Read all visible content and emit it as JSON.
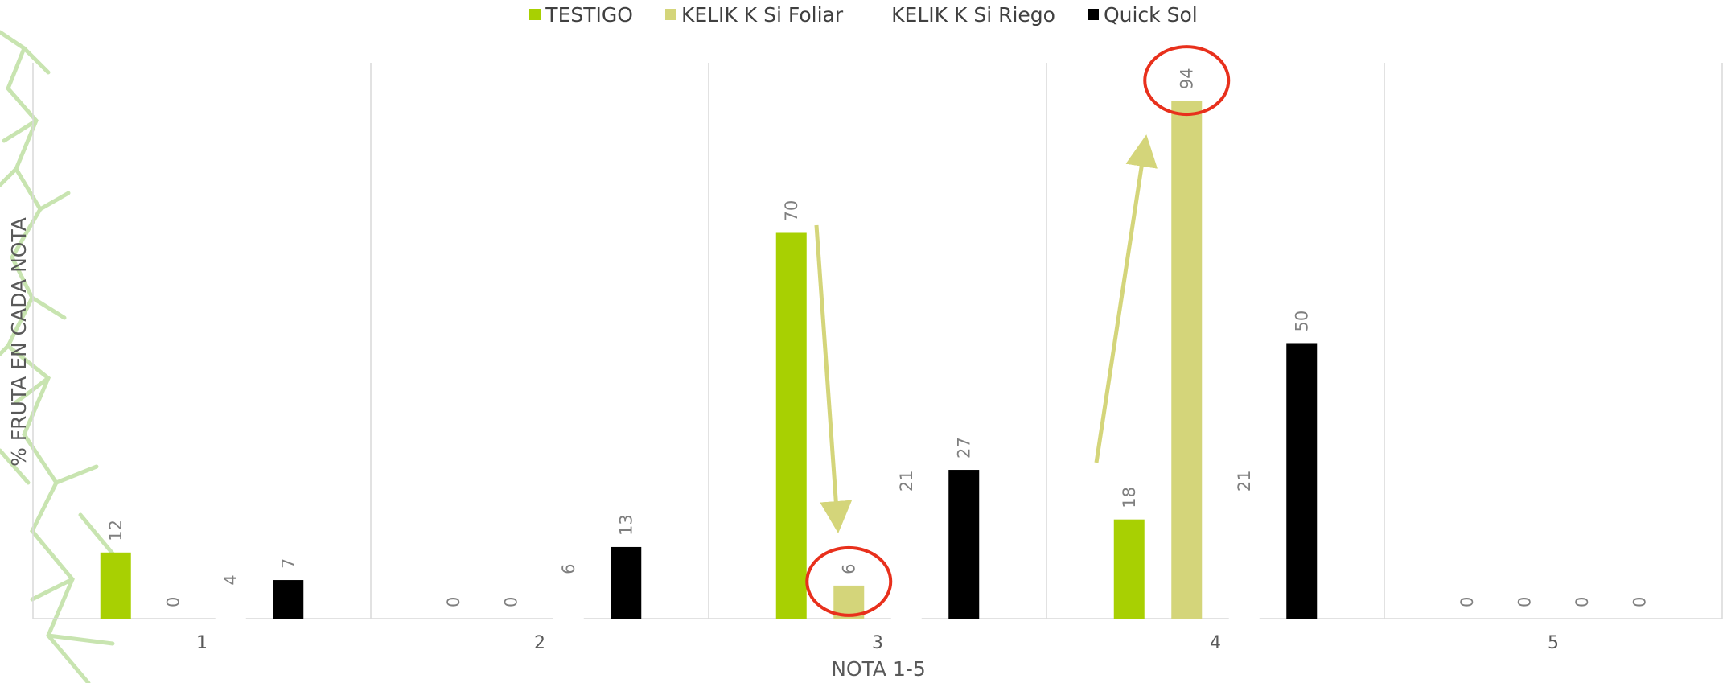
{
  "chart_data": {
    "type": "bar",
    "title": "",
    "xlabel": "NOTA 1-5",
    "ylabel": "% FRUTA EN CADA NOTA",
    "categories": [
      "1",
      "2",
      "3",
      "4",
      "5"
    ],
    "series": [
      {
        "name": "TESTIGO",
        "color": "#a8d002",
        "values": [
          12,
          0,
          70,
          18,
          0
        ]
      },
      {
        "name": "KELIK K Si Foliar",
        "color": "#d4d57a",
        "values": [
          0,
          0,
          6,
          94,
          0
        ]
      },
      {
        "name": "KELIK K Si Riego",
        "color": "#ffffff",
        "values": [
          4,
          6,
          21,
          21,
          0
        ]
      },
      {
        "name": "Quick Sol",
        "color": "#000000",
        "values": [
          7,
          13,
          27,
          50,
          0
        ]
      }
    ],
    "ylim": [
      0,
      100
    ],
    "legend_position": "top",
    "grid": "vertical category separators",
    "annotations": {
      "highlight_circles": [
        {
          "category": "3",
          "series": "KELIK K Si Foliar"
        },
        {
          "category": "4",
          "series": "KELIK K Si Foliar"
        }
      ],
      "arrows": [
        {
          "from_category": "3",
          "direction": "down"
        },
        {
          "from_category": "4",
          "direction": "up"
        }
      ],
      "circle_color": "#e8301c",
      "arrow_color": "#d4d57a"
    }
  }
}
